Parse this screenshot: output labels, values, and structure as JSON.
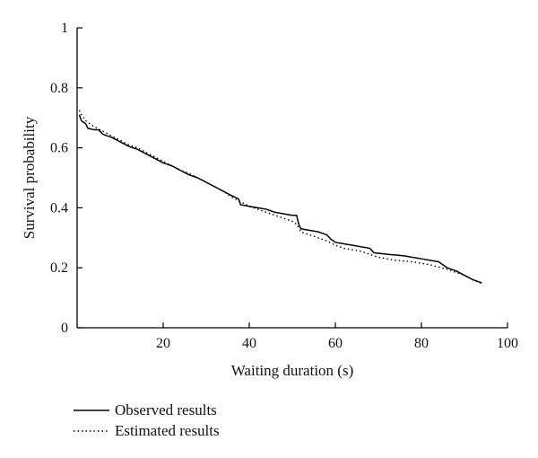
{
  "chart_data": {
    "type": "line",
    "title": "",
    "xlabel": "Waiting duration (s)",
    "ylabel": "Survival probability",
    "xlim": [
      0,
      100
    ],
    "ylim": [
      0,
      1
    ],
    "x_ticks": [
      20,
      40,
      60,
      80,
      100
    ],
    "y_ticks": [
      0,
      0.2,
      0.4,
      0.6,
      0.8,
      1
    ],
    "x_tick_labels": [
      "20",
      "40",
      "60",
      "80",
      "100"
    ],
    "y_tick_labels": [
      "0",
      "0.2",
      "0.4",
      "0.6",
      "0.8",
      "1"
    ],
    "grid": false,
    "legend_position": "bottom-left",
    "series": [
      {
        "name": "Observed results",
        "style": "solid",
        "color": "#000000",
        "points": [
          [
            0.5,
            0.71
          ],
          [
            1.0,
            0.69
          ],
          [
            2.0,
            0.68
          ],
          [
            2.5,
            0.665
          ],
          [
            4.0,
            0.66
          ],
          [
            5.0,
            0.66
          ],
          [
            6.0,
            0.645
          ],
          [
            8.0,
            0.635
          ],
          [
            10.0,
            0.62
          ],
          [
            12.0,
            0.605
          ],
          [
            14.0,
            0.595
          ],
          [
            16.0,
            0.58
          ],
          [
            18.0,
            0.565
          ],
          [
            20.0,
            0.55
          ],
          [
            22.0,
            0.54
          ],
          [
            24.0,
            0.525
          ],
          [
            26.0,
            0.51
          ],
          [
            28.0,
            0.5
          ],
          [
            30.0,
            0.485
          ],
          [
            32.0,
            0.47
          ],
          [
            34.0,
            0.455
          ],
          [
            36.0,
            0.44
          ],
          [
            37.5,
            0.43
          ],
          [
            38.0,
            0.41
          ],
          [
            40.0,
            0.405
          ],
          [
            42.0,
            0.4
          ],
          [
            44.0,
            0.395
          ],
          [
            46.0,
            0.385
          ],
          [
            48.0,
            0.38
          ],
          [
            50.0,
            0.375
          ],
          [
            51.0,
            0.375
          ],
          [
            51.5,
            0.345
          ],
          [
            52.0,
            0.33
          ],
          [
            54.0,
            0.325
          ],
          [
            56.0,
            0.32
          ],
          [
            58.0,
            0.31
          ],
          [
            59.0,
            0.295
          ],
          [
            60.0,
            0.285
          ],
          [
            62.0,
            0.28
          ],
          [
            64.0,
            0.275
          ],
          [
            66.0,
            0.27
          ],
          [
            68.0,
            0.265
          ],
          [
            69.0,
            0.25
          ],
          [
            72.0,
            0.245
          ],
          [
            76.0,
            0.24
          ],
          [
            80.0,
            0.23
          ],
          [
            84.0,
            0.22
          ],
          [
            85.0,
            0.21
          ],
          [
            86.0,
            0.2
          ],
          [
            88.0,
            0.19
          ],
          [
            90.0,
            0.175
          ],
          [
            92.0,
            0.16
          ],
          [
            94.0,
            0.15
          ]
        ]
      },
      {
        "name": "Estimated results",
        "style": "dotted",
        "color": "#000000",
        "points": [
          [
            0.5,
            0.725
          ],
          [
            1.0,
            0.71
          ],
          [
            2.0,
            0.69
          ],
          [
            4.0,
            0.67
          ],
          [
            6.0,
            0.655
          ],
          [
            8.0,
            0.64
          ],
          [
            10.0,
            0.625
          ],
          [
            12.0,
            0.61
          ],
          [
            14.0,
            0.6
          ],
          [
            16.0,
            0.585
          ],
          [
            18.0,
            0.57
          ],
          [
            20.0,
            0.555
          ],
          [
            22.0,
            0.54
          ],
          [
            24.0,
            0.525
          ],
          [
            26.0,
            0.515
          ],
          [
            28.0,
            0.5
          ],
          [
            30.0,
            0.485
          ],
          [
            32.0,
            0.47
          ],
          [
            34.0,
            0.455
          ],
          [
            36.0,
            0.435
          ],
          [
            38.0,
            0.42
          ],
          [
            40.0,
            0.405
          ],
          [
            42.0,
            0.395
          ],
          [
            44.0,
            0.385
          ],
          [
            46.0,
            0.375
          ],
          [
            48.0,
            0.365
          ],
          [
            50.0,
            0.355
          ],
          [
            51.0,
            0.345
          ],
          [
            52.0,
            0.32
          ],
          [
            54.0,
            0.31
          ],
          [
            56.0,
            0.3
          ],
          [
            58.0,
            0.29
          ],
          [
            60.0,
            0.275
          ],
          [
            62.0,
            0.265
          ],
          [
            64.0,
            0.26
          ],
          [
            66.0,
            0.255
          ],
          [
            68.0,
            0.245
          ],
          [
            70.0,
            0.235
          ],
          [
            74.0,
            0.225
          ],
          [
            78.0,
            0.22
          ],
          [
            82.0,
            0.21
          ],
          [
            86.0,
            0.195
          ],
          [
            88.0,
            0.185
          ],
          [
            90.0,
            0.175
          ],
          [
            92.0,
            0.16
          ],
          [
            94.0,
            0.148
          ]
        ]
      }
    ]
  }
}
